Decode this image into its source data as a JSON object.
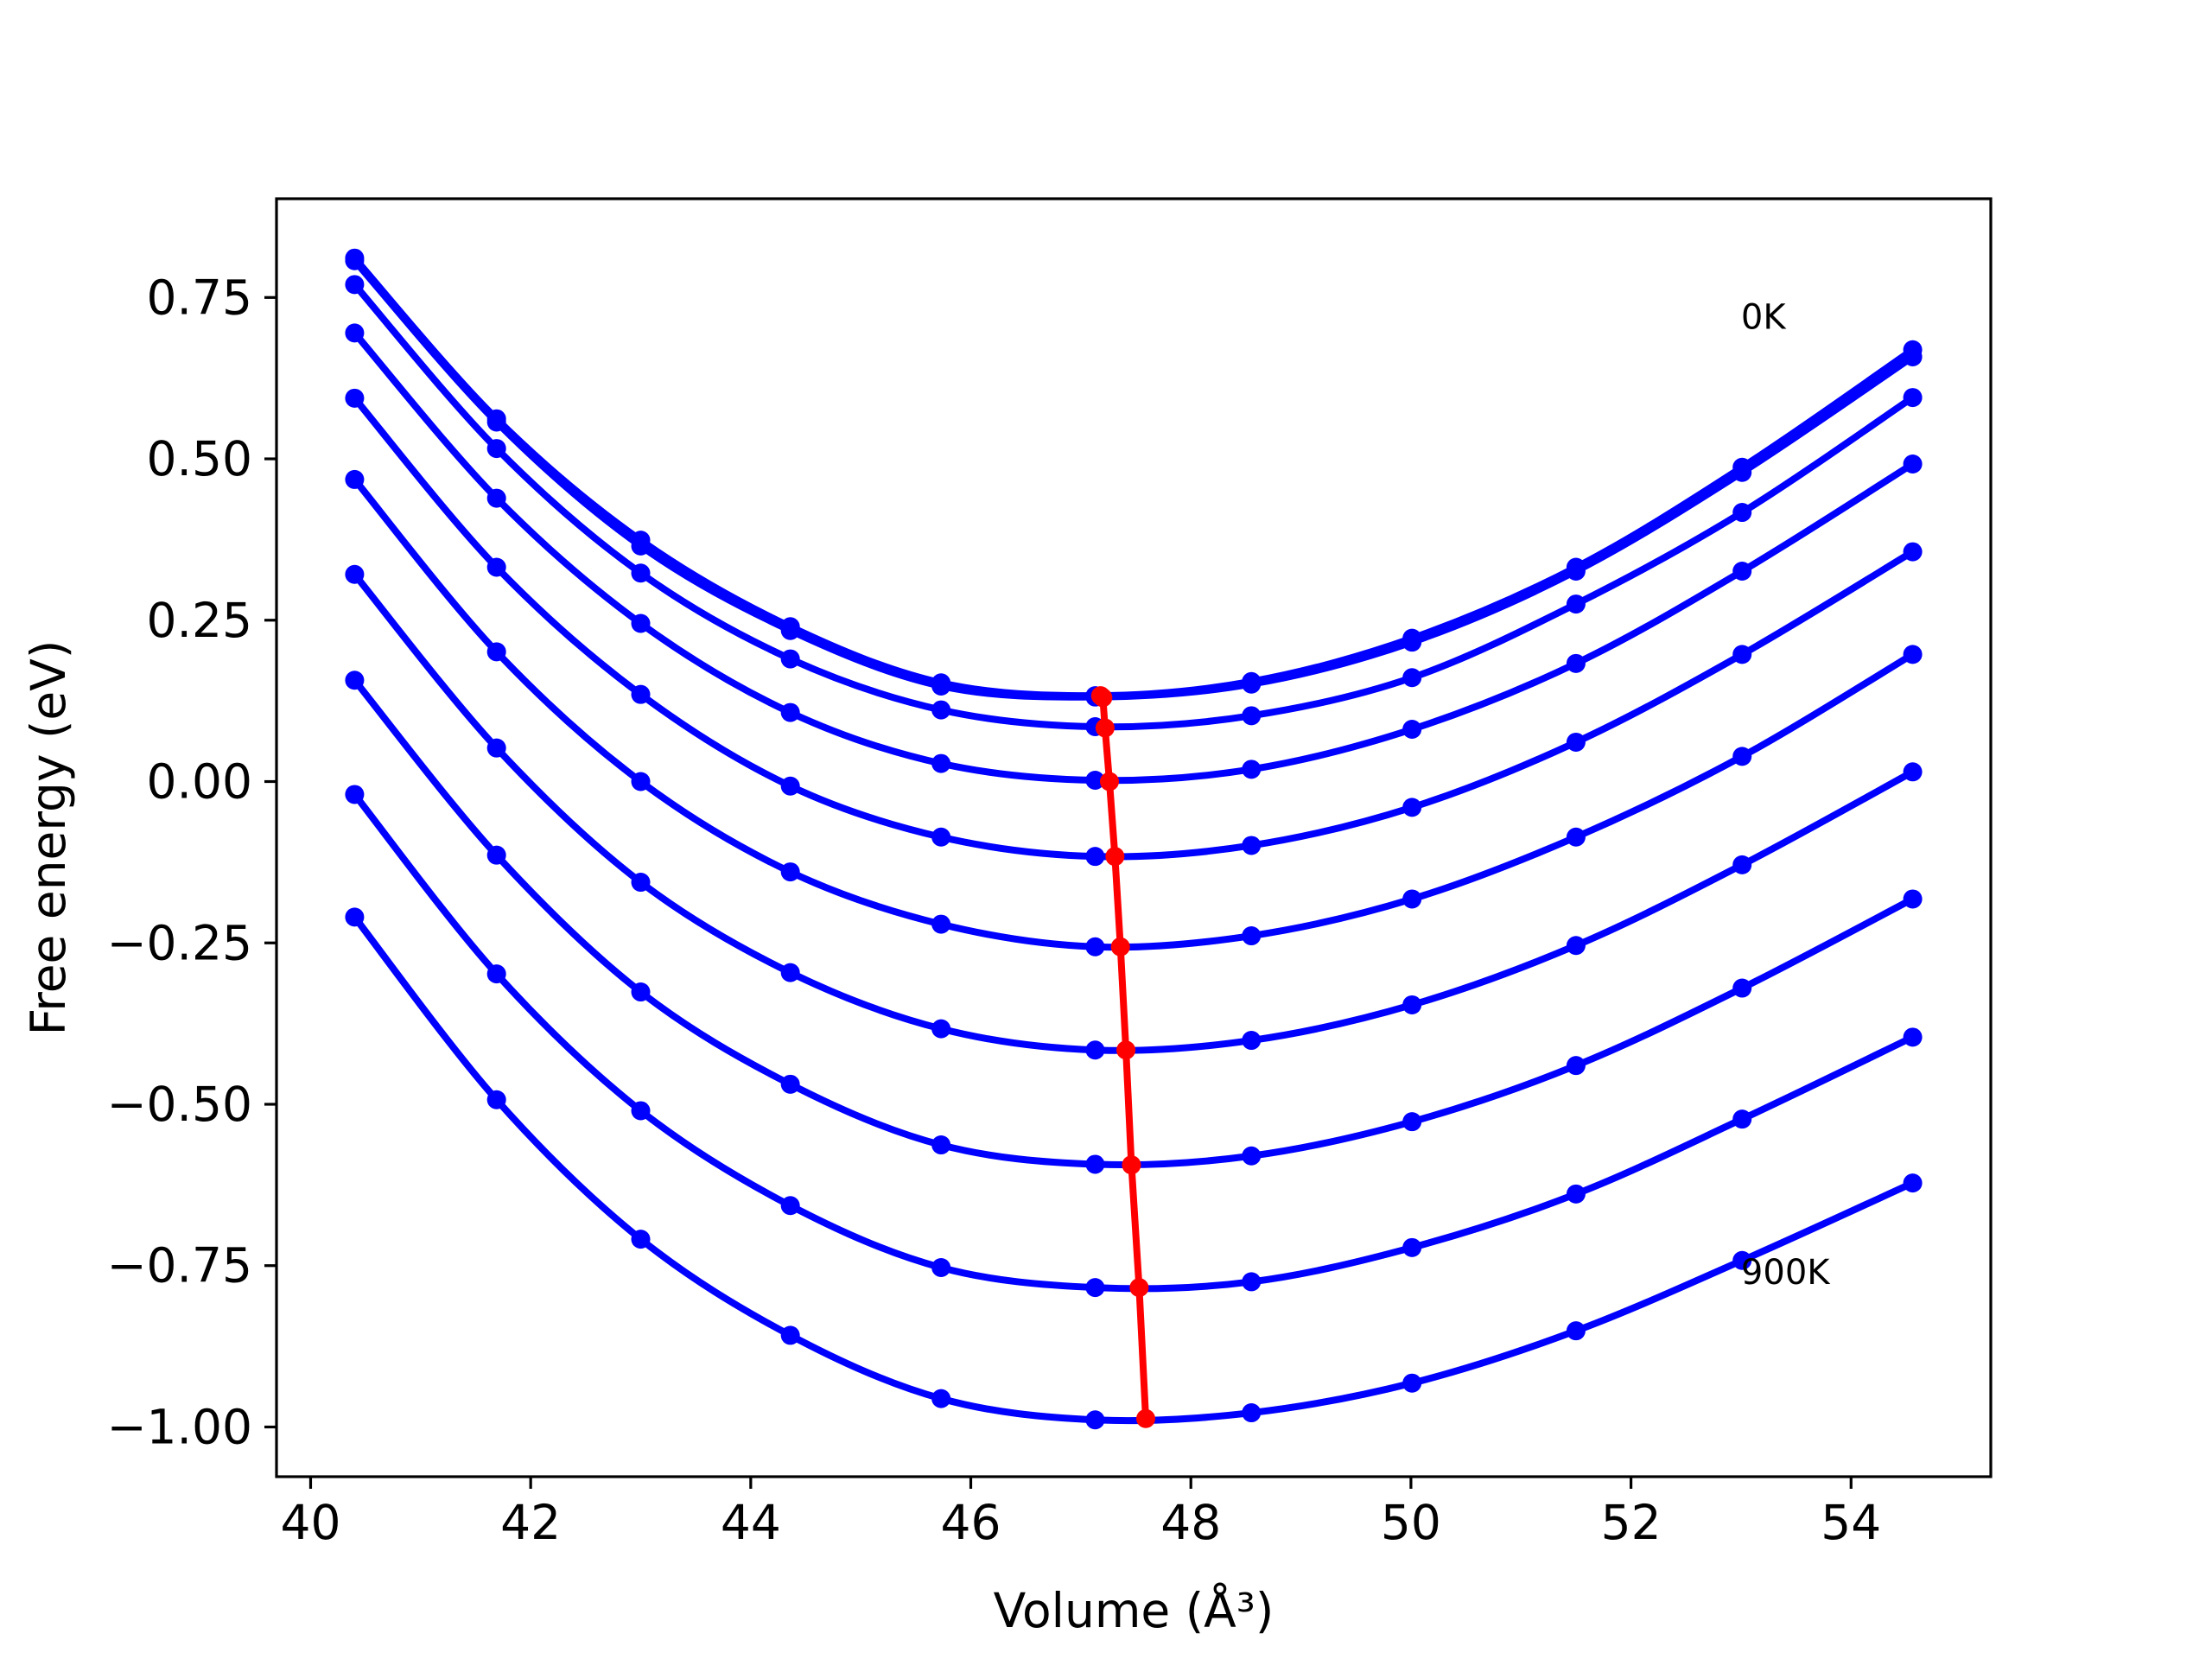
{
  "chart_data": {
    "type": "line",
    "title": "",
    "xlabel": "Volume (Å³)",
    "ylabel": "Free energy (eV)",
    "xlim": [
      39.69,
      55.27
    ],
    "ylim": [
      -1.077,
      0.903
    ],
    "grid": false,
    "xticks": [
      40,
      42,
      44,
      46,
      48,
      50,
      52,
      54
    ],
    "xtick_labels": [
      "40",
      "42",
      "44",
      "46",
      "48",
      "50",
      "52",
      "54"
    ],
    "yticks": [
      -1.0,
      -0.75,
      -0.5,
      -0.25,
      0.0,
      0.25,
      0.5,
      0.75
    ],
    "ytick_labels": [
      "−1.00",
      "−0.75",
      "−0.50",
      "−0.25",
      "0.00",
      "0.25",
      "0.50",
      "0.75"
    ],
    "x": [
      40.4,
      41.69,
      43.0,
      44.36,
      45.73,
      47.13,
      48.55,
      50.01,
      51.5,
      53.01,
      54.56
    ],
    "series": [
      {
        "values": [
          0.811,
          0.562,
          0.374,
          0.24,
          0.153,
          0.133,
          0.155,
          0.222,
          0.332,
          0.487,
          0.669
        ]
      },
      {
        "values": [
          0.807,
          0.557,
          0.365,
          0.234,
          0.148,
          0.131,
          0.151,
          0.216,
          0.326,
          0.479,
          0.658
        ]
      },
      {
        "values": [
          0.77,
          0.516,
          0.323,
          0.19,
          0.111,
          0.085,
          0.102,
          0.161,
          0.275,
          0.417,
          0.595
        ]
      },
      {
        "values": [
          0.695,
          0.439,
          0.245,
          0.107,
          0.028,
          0.002,
          0.019,
          0.081,
          0.183,
          0.326,
          0.492
        ]
      },
      {
        "values": [
          0.594,
          0.332,
          0.135,
          -0.007,
          -0.086,
          -0.116,
          -0.099,
          -0.04,
          0.061,
          0.197,
          0.356
        ]
      },
      {
        "values": [
          0.468,
          0.201,
          0.0,
          -0.14,
          -0.221,
          -0.256,
          -0.239,
          -0.182,
          -0.086,
          0.039,
          0.197
        ]
      },
      {
        "values": [
          0.321,
          0.052,
          -0.156,
          -0.296,
          -0.383,
          -0.416,
          -0.401,
          -0.346,
          -0.254,
          -0.129,
          0.015
        ]
      },
      {
        "values": [
          0.157,
          -0.114,
          -0.326,
          -0.469,
          -0.563,
          -0.593,
          -0.58,
          -0.527,
          -0.44,
          -0.32,
          -0.182
        ]
      },
      {
        "values": [
          -0.02,
          -0.298,
          -0.51,
          -0.657,
          -0.753,
          -0.784,
          -0.775,
          -0.722,
          -0.639,
          -0.523,
          -0.396
        ]
      },
      {
        "values": [
          -0.21,
          -0.493,
          -0.709,
          -0.858,
          -0.956,
          -0.989,
          -0.978,
          -0.932,
          -0.851,
          -0.742,
          -0.622
        ]
      }
    ],
    "minima": {
      "x": [
        47.18,
        47.2,
        47.22,
        47.26,
        47.31,
        47.36,
        47.41,
        47.46,
        47.53,
        47.59
      ],
      "y": [
        0.133,
        0.13,
        0.083,
        0.0,
        -0.116,
        -0.256,
        -0.416,
        -0.594,
        -0.784,
        -0.987
      ]
    },
    "annotations": [
      {
        "text": "0K",
        "x": 53.0,
        "y": 0.72
      },
      {
        "text": "900K",
        "x": 53.0,
        "y": -0.76
      }
    ],
    "colors": {
      "curves": "#0000ff",
      "minima": "#ff0000",
      "axes": "#000000"
    }
  }
}
